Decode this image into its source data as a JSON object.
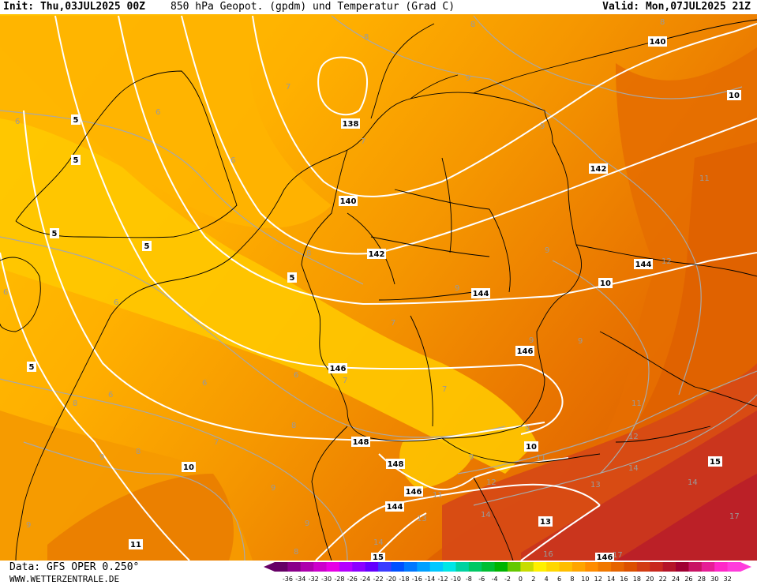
{
  "header": {
    "init": "Init: Thu,03JUL2025 00Z",
    "title": "850 hPa Geopot. (gpdm) und Temperatur (Grad C)",
    "valid": "Valid: Mon,07JUL2025 21Z"
  },
  "footer": {
    "source": "Data: GFS OPER 0.250°",
    "url": "WWW.WETTERZENTRALE.DE"
  },
  "legend": {
    "ticks": [
      "-36",
      "-34",
      "-32",
      "-30",
      "-28",
      "-26",
      "-24",
      "-22",
      "-20",
      "-18",
      "-16",
      "-14",
      "-12",
      "-10",
      "-8",
      "-6",
      "-4",
      "-2",
      "0",
      "2",
      "4",
      "6",
      "8",
      "10",
      "12",
      "14",
      "16",
      "18",
      "20",
      "22",
      "24",
      "26",
      "28",
      "30",
      "32"
    ],
    "colors": [
      "#660066",
      "#8a008a",
      "#ad00ad",
      "#cc00cc",
      "#e600e6",
      "#b400ff",
      "#8c00ff",
      "#6400ff",
      "#3c3cff",
      "#0050ff",
      "#0078ff",
      "#00a0ff",
      "#00c8ff",
      "#00e6e6",
      "#00d2a0",
      "#00c864",
      "#00be32",
      "#00b400",
      "#64c800",
      "#c8dc00",
      "#fff000",
      "#ffd700",
      "#ffbe00",
      "#ffa500",
      "#ff8c00",
      "#f07800",
      "#e66400",
      "#dc5000",
      "#d23c14",
      "#c8281e",
      "#b41428",
      "#a00032",
      "#c81464",
      "#e61e96",
      "#ff28c8",
      "#ff3cdc"
    ]
  },
  "geopotential_labels": [
    "138",
    "140",
    "140",
    "142",
    "142",
    "144",
    "144",
    "144",
    "146",
    "146",
    "148",
    "148",
    "146",
    "144",
    "13",
    "15",
    "146",
    "140",
    "15"
  ],
  "temperature_labels": [
    "8",
    "8",
    "8",
    "7",
    "7",
    "6",
    "6",
    "6",
    "5",
    "5",
    "5",
    "5",
    "5",
    "5",
    "6",
    "6",
    "6",
    "6",
    "6",
    "7",
    "7",
    "7",
    "7",
    "8",
    "8",
    "8",
    "8",
    "9",
    "9",
    "9",
    "9",
    "9",
    "9",
    "9",
    "10",
    "10",
    "10",
    "10",
    "11",
    "11",
    "11",
    "11",
    "12",
    "12",
    "12",
    "13",
    "13",
    "13",
    "14",
    "14",
    "14",
    "15",
    "16",
    "16",
    "17",
    "17"
  ]
}
